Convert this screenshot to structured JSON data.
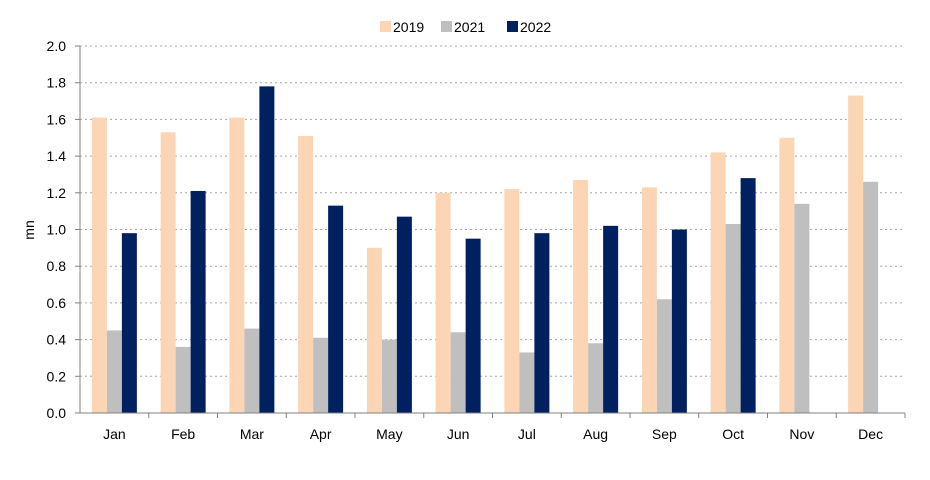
{
  "chart_data": {
    "type": "bar",
    "categories": [
      "Jan",
      "Feb",
      "Mar",
      "Apr",
      "May",
      "Jun",
      "Jul",
      "Aug",
      "Sep",
      "Oct",
      "Nov",
      "Dec"
    ],
    "series": [
      {
        "name": "2019",
        "color": "#fcd5b5",
        "values": [
          1.61,
          1.53,
          1.61,
          1.51,
          0.9,
          1.2,
          1.22,
          1.27,
          1.23,
          1.42,
          1.5,
          1.73
        ]
      },
      {
        "name": "2021",
        "color": "#bfbfbf",
        "values": [
          0.45,
          0.36,
          0.46,
          0.41,
          0.4,
          0.44,
          0.33,
          0.38,
          0.62,
          1.03,
          1.14,
          1.26
        ]
      },
      {
        "name": "2022",
        "color": "#002060",
        "values": [
          0.98,
          1.21,
          1.78,
          1.13,
          1.07,
          0.95,
          0.98,
          1.02,
          1.0,
          1.28,
          null,
          null
        ]
      }
    ],
    "xlabel": "",
    "ylabel": "mn",
    "ylim": [
      0,
      2.0
    ],
    "yticks": [
      "0.0",
      "0.2",
      "0.4",
      "0.6",
      "0.8",
      "1.0",
      "1.2",
      "1.4",
      "1.6",
      "1.8",
      "2.0"
    ],
    "grid": true,
    "legend": "top-center"
  }
}
